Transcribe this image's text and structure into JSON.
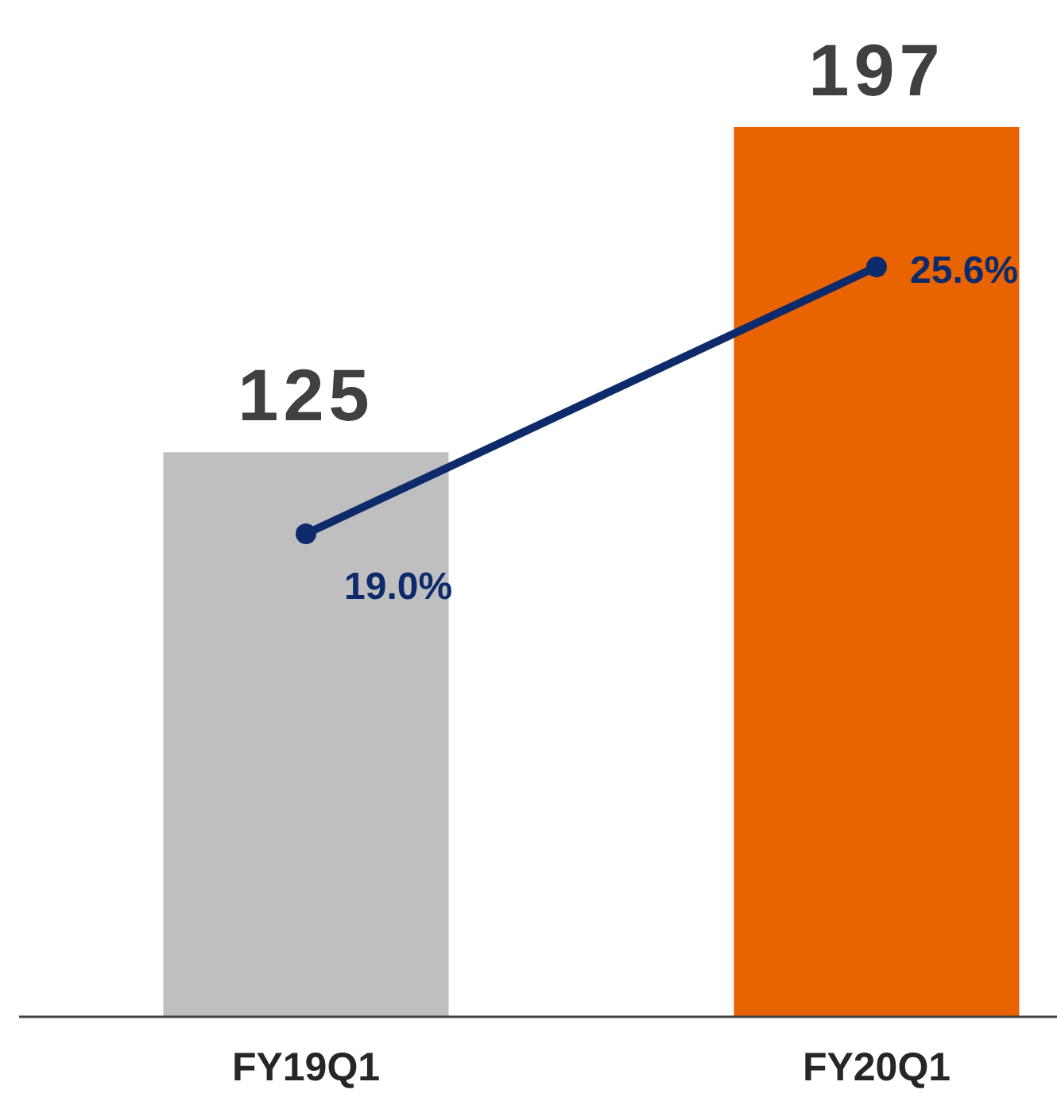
{
  "chart_data": {
    "type": "bar",
    "categories": [
      "FY19Q1",
      "FY20Q1"
    ],
    "tick_labels": "x",
    "series": [
      {
        "colors": [
          "#bfbfbf",
          "#e96300"
        ],
        "values": [
          125,
          197
        ],
        "value_labels": [
          "125",
          "197"
        ]
      },
      {
        "type": "line",
        "axis": "y2",
        "color": "#0d2a6b",
        "marker": "circle",
        "values": [
          19.0,
          25.6
        ],
        "value_labels": [
          "19.0%",
          "25.6%"
        ]
      }
    ]
  }
}
